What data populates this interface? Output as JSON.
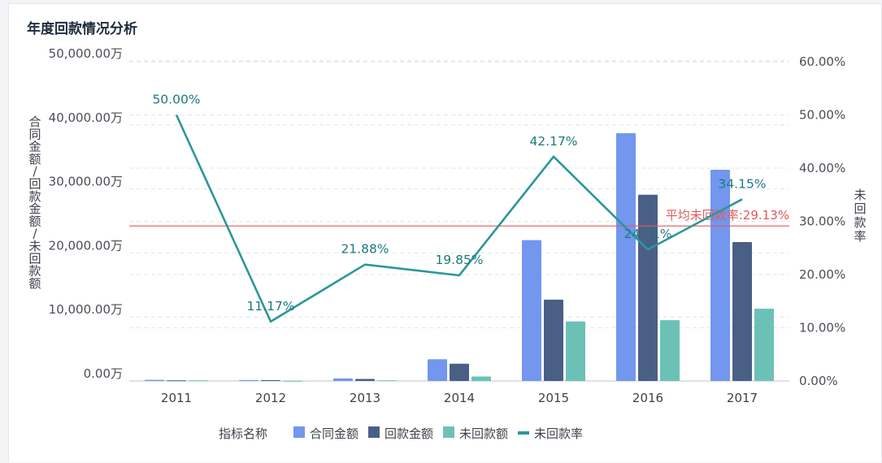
{
  "panel": {
    "title": "年度回款情况分析"
  },
  "chart_data": {
    "type": "bar",
    "categories": [
      "2011",
      "2012",
      "2013",
      "2014",
      "2015",
      "2016",
      "2017"
    ],
    "series": [
      {
        "name": "合同金额",
        "kind": "bar",
        "axis": "left",
        "color": "#7396ee",
        "values": [
          180,
          150,
          400,
          3400,
          22000,
          38700,
          33000
        ]
      },
      {
        "name": "回款金额",
        "kind": "bar",
        "axis": "left",
        "color": "#4a5f85",
        "values": [
          90,
          130,
          310,
          2700,
          12700,
          29100,
          21700
        ]
      },
      {
        "name": "未回款额",
        "kind": "bar",
        "axis": "left",
        "color": "#6cc1b7",
        "values": [
          90,
          20,
          90,
          700,
          9300,
          9500,
          11300
        ]
      },
      {
        "name": "未回款率",
        "kind": "line",
        "axis": "right",
        "color": "#2b979a",
        "values": [
          50.0,
          11.17,
          21.88,
          19.85,
          42.17,
          24.71,
          34.15
        ],
        "labels": [
          "50.00%",
          "11.17%",
          "21.88%",
          "19.85%",
          "42.17%",
          "24.71%",
          "34.15%"
        ]
      }
    ],
    "left_axis": {
      "label": "合同金额/回款金额/未回款额",
      "min": 0,
      "max": 50000,
      "ticks": [
        0,
        10000,
        20000,
        30000,
        40000,
        50000
      ],
      "tick_labels": [
        "0.00万",
        "10,000.00万",
        "20,000.00万",
        "30,000.00万",
        "40,000.00万",
        "50,000.00万"
      ]
    },
    "right_axis": {
      "label": "未回款率",
      "min": 0,
      "max": 60,
      "ticks": [
        0,
        10,
        20,
        30,
        40,
        50,
        60
      ],
      "tick_labels": [
        "0.00%",
        "10.00%",
        "20.00%",
        "30.00%",
        "40.00%",
        "50.00%",
        "60.00%"
      ]
    },
    "reference_line": {
      "label": "平均未回款率:29.13%",
      "value": 29.13,
      "axis": "right",
      "color": "#e05a5a"
    },
    "legend": {
      "title": "指标名称",
      "placement": "bottom"
    },
    "grid": "dashed-horizontal"
  }
}
